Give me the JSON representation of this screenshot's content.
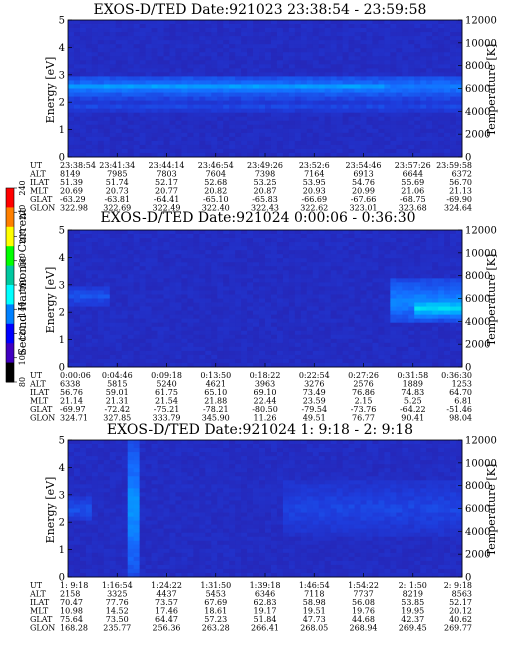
{
  "colorbar": {
    "label": "Second Harmonic Current",
    "ticks": [
      "240",
      "220",
      "200",
      "180",
      "160",
      "140",
      "120",
      "100",
      "80"
    ],
    "colors": [
      "#ff0000",
      "#ff8000",
      "#ffff00",
      "#00ff00",
      "#00c8a0",
      "#00ffff",
      "#0080ff",
      "#0000ff",
      "#4000c0",
      "#000000"
    ]
  },
  "chart_data": [
    {
      "type": "heatmap",
      "title": "EXOS-D/TED   Date:921023  23:38:54 - 23:59:58",
      "ylabel": "Energy [eV]",
      "ylabel_right": "Temperature [K]",
      "ylim": [
        0,
        5
      ],
      "yticks": [
        "0",
        "1",
        "2",
        "3",
        "4",
        "5"
      ],
      "ylim_right": [
        0,
        12000
      ],
      "yticks_right": [
        "0",
        "2000",
        "4000",
        "6000",
        "8000",
        "10000",
        "12000"
      ],
      "rows": [
        {
          "name": "UT",
          "values": [
            "23:38:54",
            "23:41:34",
            "23:44:14",
            "23:46:54",
            "23:49:26",
            "23:52:6",
            "23:54:46",
            "23:57:26",
            "23:59:58"
          ]
        },
        {
          "name": "ALT",
          "values": [
            "8149",
            "7985",
            "7803",
            "7604",
            "7398",
            "7164",
            "6913",
            "6644",
            "6372"
          ]
        },
        {
          "name": "ILAT",
          "values": [
            "51.39",
            "51.74",
            "52.17",
            "52.68",
            "53.25",
            "53.95",
            "54.76",
            "55.69",
            "56.70"
          ]
        },
        {
          "name": "MLT",
          "values": [
            "20.69",
            "20.73",
            "20.77",
            "20.82",
            "20.87",
            "20.93",
            "20.99",
            "21.06",
            "21.13"
          ]
        },
        {
          "name": "GLAT",
          "values": [
            "-63.29",
            "-63.81",
            "-64.41",
            "-65.10",
            "-65.83",
            "-66.69",
            "-67.66",
            "-68.75",
            "-69.90"
          ]
        },
        {
          "name": "GLON",
          "values": [
            "322.98",
            "322.69",
            "322.49",
            "322.40",
            "322.43",
            "322.62",
            "323.01",
            "323.68",
            "324.64"
          ]
        }
      ],
      "bands": [
        {
          "e_min": 2.1,
          "e_max": 3.0,
          "intensity": 0.45,
          "x_start": 0.0,
          "x_end": 1.0
        },
        {
          "e_min": 2.35,
          "e_max": 2.75,
          "intensity": 0.6,
          "x_start": 0.0,
          "x_end": 0.8
        },
        {
          "e_min": 1.6,
          "e_max": 2.1,
          "intensity": 0.25,
          "x_start": 0.0,
          "x_end": 1.0
        }
      ]
    },
    {
      "type": "heatmap",
      "title": "EXOS-D/TED   Date:921024  0:00:06 - 0:36:30",
      "ylabel": "Energy [eV]",
      "ylabel_right": "Temperature [K]",
      "ylim": [
        0,
        5
      ],
      "yticks": [
        "0",
        "1",
        "2",
        "3",
        "4",
        "5"
      ],
      "ylim_right": [
        0,
        12000
      ],
      "yticks_right": [
        "0",
        "2000",
        "4000",
        "6000",
        "8000",
        "10000",
        "12000"
      ],
      "rows": [
        {
          "name": "UT",
          "values": [
            "0:00:06",
            "0:04:46",
            "0:09:18",
            "0:13:50",
            "0:18:22",
            "0:22:54",
            "0:27:26",
            "0:31:58",
            "0:36:30"
          ]
        },
        {
          "name": "ALT",
          "values": [
            "6338",
            "5815",
            "5240",
            "4621",
            "3963",
            "3276",
            "2576",
            "1889",
            "1253"
          ]
        },
        {
          "name": "ILAT",
          "values": [
            "56.76",
            "59.01",
            "61.75",
            "65.10",
            "69.10",
            "73.49",
            "76.86",
            "74.83",
            "64.70"
          ]
        },
        {
          "name": "MLT",
          "values": [
            "21.14",
            "21.31",
            "21.54",
            "21.88",
            "22.44",
            "23.59",
            "2.15",
            "5.25",
            "6.81"
          ]
        },
        {
          "name": "GLAT",
          "values": [
            "-69.97",
            "-72.42",
            "-75.21",
            "-78.21",
            "-80.50",
            "-79.54",
            "-73.76",
            "-64.22",
            "-51.46"
          ]
        },
        {
          "name": "GLON",
          "values": [
            "324.71",
            "327.85",
            "333.79",
            "345.90",
            "11.26",
            "49.51",
            "76.77",
            "90.41",
            "98.04"
          ]
        }
      ],
      "bands": [
        {
          "e_min": 2.2,
          "e_max": 3.0,
          "intensity": 0.3,
          "x_start": 0.0,
          "x_end": 0.1
        },
        {
          "e_min": 1.6,
          "e_max": 3.2,
          "intensity": 0.5,
          "x_start": 0.82,
          "x_end": 1.0
        },
        {
          "e_min": 1.8,
          "e_max": 2.5,
          "intensity": 0.8,
          "x_start": 0.88,
          "x_end": 1.0
        }
      ]
    },
    {
      "type": "heatmap",
      "title": "EXOS-D/TED   Date:921024  1: 9:18 - 2: 9:18",
      "ylabel": "Energy [eV]",
      "ylabel_right": "Temperature [K]",
      "ylim": [
        0,
        5
      ],
      "yticks": [
        "0",
        "1",
        "2",
        "3",
        "4",
        "5"
      ],
      "ylim_right": [
        0,
        12000
      ],
      "yticks_right": [
        "0",
        "2000",
        "4000",
        "6000",
        "8000",
        "10000",
        "12000"
      ],
      "rows": [
        {
          "name": "UT",
          "values": [
            "1: 9:18",
            "1:16:54",
            "1:24:22",
            "1:31:50",
            "1:39:18",
            "1:46:54",
            "1:54:22",
            "2: 1:50",
            "2: 9:18"
          ]
        },
        {
          "name": "ALT",
          "values": [
            "2158",
            "3325",
            "4437",
            "5453",
            "6346",
            "7118",
            "7737",
            "8219",
            "8563"
          ]
        },
        {
          "name": "ILAT",
          "values": [
            "70.47",
            "77.76",
            "73.57",
            "67.69",
            "62.83",
            "58.98",
            "56.08",
            "53.85",
            "52.17"
          ]
        },
        {
          "name": "MLT",
          "values": [
            "10.98",
            "14.52",
            "17.46",
            "18.61",
            "19.17",
            "19.51",
            "19.76",
            "19.95",
            "20.12"
          ]
        },
        {
          "name": "GLAT",
          "values": [
            "75.64",
            "73.50",
            "64.47",
            "57.23",
            "51.84",
            "47.73",
            "44.68",
            "42.37",
            "40.62"
          ]
        },
        {
          "name": "GLON",
          "values": [
            "168.28",
            "235.77",
            "256.36",
            "263.28",
            "266.41",
            "268.05",
            "268.94",
            "269.45",
            "269.77"
          ]
        }
      ],
      "bands": [
        {
          "e_min": 1.5,
          "e_max": 3.5,
          "intensity": 0.25,
          "x_start": 0.55,
          "x_end": 1.0
        },
        {
          "e_min": 2.0,
          "e_max": 3.0,
          "intensity": 0.3,
          "x_start": 0.0,
          "x_end": 0.06
        },
        {
          "e_min": 0.0,
          "e_max": 5.0,
          "intensity": 0.55,
          "x_start": 0.155,
          "x_end": 0.175
        }
      ]
    }
  ]
}
